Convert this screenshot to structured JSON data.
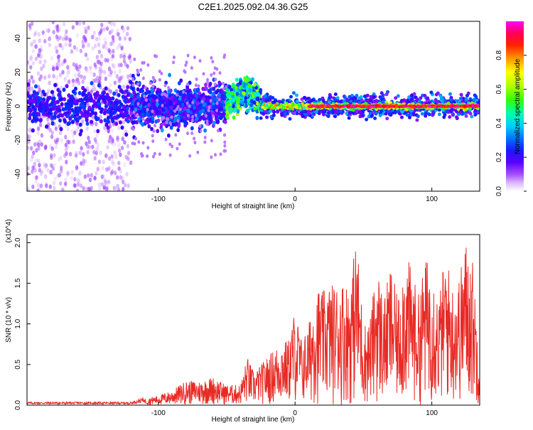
{
  "figure_title": "C2E1.2025.092.04.36.G25",
  "colors": {
    "snr_line": "#e82a24",
    "colormap": [
      "#ffffff",
      "#d9b8ff",
      "#a64dff",
      "#7a00ff",
      "#3300ff",
      "#0033ff",
      "#0099ff",
      "#00e5ff",
      "#00ff99",
      "#33ff00",
      "#b3ff00",
      "#ffff00",
      "#ffb300",
      "#ff4d00",
      "#ff0000",
      "#ff1a66",
      "#ff00ff"
    ]
  },
  "chart_data": [
    {
      "type": "heatmap",
      "title": "C2E1.2025.092.04.36.G25",
      "xlabel": "Height of straight line (km)",
      "ylabel": "Frequency (Hz)",
      "xlim": [
        -196,
        135
      ],
      "ylim": [
        -50,
        50
      ],
      "xticks": [
        -100,
        0,
        100
      ],
      "yticks": [
        -40,
        -20,
        0,
        20,
        40
      ],
      "colorbar": {
        "label": "Normalized spectral amplitude",
        "range": [
          0,
          1
        ],
        "ticks": [
          "0.0",
          "0.2",
          "0.4",
          "0.6",
          "0.8"
        ]
      },
      "regions": [
        {
          "x_range": [
            -196,
            -120
          ],
          "description": "Sparse broadband noise",
          "freq_spread": 50,
          "amplitude": 0.15
        },
        {
          "x_range": [
            -120,
            -50
          ],
          "description": "Noisy band around 0 Hz",
          "freq_spread": 10,
          "amplitude": 0.25
        },
        {
          "x_range": [
            -50,
            -25
          ],
          "description": "Band rising to ~5 Hz",
          "freq_peak": 5,
          "amplitude": 0.45
        },
        {
          "x_range": [
            -25,
            135
          ],
          "description": "Strong narrow line at ~0 Hz",
          "freq_spread": 2,
          "amplitude": 0.95
        }
      ]
    },
    {
      "type": "line",
      "xlabel": "Height of straight line (km)",
      "ylabel": "SNR (10 * v/v)",
      "y_multiplier": "(x10^4)",
      "xlim": [
        -196,
        135
      ],
      "ylim": [
        0,
        2.1
      ],
      "xticks": [
        -100,
        0,
        100
      ],
      "yticks": [
        "0.0",
        "0.5",
        "1.0",
        "1.5",
        "2.0"
      ],
      "series": [
        {
          "x": [
            -196,
            -180,
            -160,
            -140,
            -120,
            -110,
            -100,
            -90,
            -80,
            -70,
            -60,
            -50,
            -40,
            -35,
            -30,
            -20,
            -10,
            -5,
            0,
            5,
            10,
            15,
            20,
            25,
            30,
            35,
            40,
            45,
            50,
            55,
            60,
            65,
            70,
            75,
            80,
            85,
            90,
            95,
            100,
            105,
            110,
            115,
            120,
            125,
            130,
            135
          ],
          "y": [
            0.03,
            0.03,
            0.03,
            0.03,
            0.03,
            0.08,
            0.12,
            0.18,
            0.3,
            0.3,
            0.35,
            0.25,
            0.25,
            0.6,
            0.4,
            0.6,
            0.8,
            0.8,
            1.2,
            0.8,
            1.0,
            1.5,
            1.4,
            1.5,
            1.5,
            1.55,
            1.5,
            2.1,
            1.0,
            1.1,
            1.75,
            1.3,
            1.75,
            1.3,
            1.9,
            1.7,
            1.35,
            1.8,
            1.8,
            1.3,
            1.9,
            1.5,
            1.6,
            2.05,
            1.8,
            0.6
          ]
        }
      ]
    }
  ]
}
